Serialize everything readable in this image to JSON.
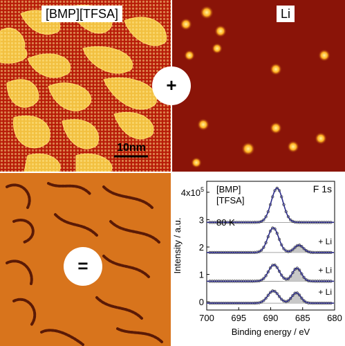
{
  "panels": {
    "top_left_label": "[BMP][TFSA]",
    "top_right_label": "Li",
    "plus_symbol": "+",
    "equals_symbol": "=",
    "scale_bar_label": "10nm"
  },
  "colors": {
    "stm_background": "#b81c08",
    "stm_island": "#f2c040",
    "li_background": "#8a1408",
    "li_spot": "#ffd23a",
    "bottom_background": "#d8741c",
    "bottom_feature": "#5a1a06",
    "xps_fit": "#2c2c88",
    "xps_shade": "#c8c8c8"
  },
  "chart_data": {
    "type": "line",
    "title": "",
    "corner_label": "F 1s",
    "annotation_sample": [
      "[BMP]",
      "[TFSA]"
    ],
    "annotation_temperature": "80 K",
    "xlabel": "Binding energy / eV",
    "ylabel": "Intensity / a.u.",
    "xlim": [
      700,
      680
    ],
    "ylim": [
      -0.3,
      4.4
    ],
    "x_ticks": [
      "700",
      "695",
      "690",
      "685",
      "680"
    ],
    "y_ticks": [
      "0",
      "1",
      "2",
      "3",
      "4x10^5"
    ],
    "y_tick_values": [
      0,
      1,
      2,
      3,
      4
    ],
    "series": [
      {
        "name": "",
        "offset": 2.9,
        "peaks": [
          {
            "center": 689.0,
            "height": 1.25,
            "width": 1.3
          }
        ]
      },
      {
        "name": "+ Li",
        "offset": 1.8,
        "peaks": [
          {
            "center": 689.6,
            "height": 0.9,
            "width": 1.2
          },
          {
            "center": 685.6,
            "height": 0.27,
            "width": 1.0
          }
        ]
      },
      {
        "name": "+ Li",
        "offset": 0.75,
        "peaks": [
          {
            "center": 689.5,
            "height": 0.6,
            "width": 1.2
          },
          {
            "center": 685.9,
            "height": 0.48,
            "width": 1.0
          }
        ]
      },
      {
        "name": "+ Li",
        "offset": -0.05,
        "peaks": [
          {
            "center": 689.6,
            "height": 0.45,
            "width": 1.2
          },
          {
            "center": 686.0,
            "height": 0.38,
            "width": 1.0
          }
        ]
      }
    ]
  }
}
